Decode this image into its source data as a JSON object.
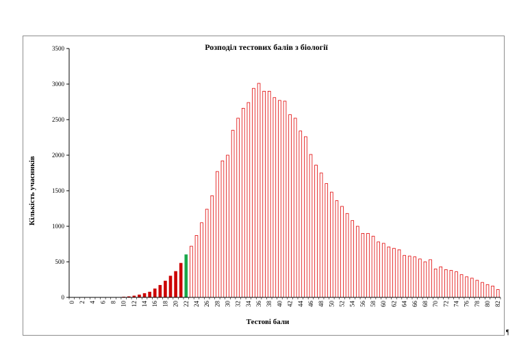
{
  "chart_data": {
    "type": "bar",
    "title": "Розподіл  тестових  балів  з біології",
    "xlabel": "Тестові бали",
    "ylabel": "Кількість учасників",
    "ylim": [
      0,
      3500
    ],
    "yticks": [
      0,
      500,
      1000,
      1500,
      2000,
      2500,
      3000,
      3500
    ],
    "xticks_shown": [
      "0",
      "2",
      "4",
      "6",
      "8",
      "10",
      "12",
      "14",
      "16",
      "18",
      "20",
      "22",
      "24",
      "26",
      "28",
      "30",
      "32",
      "34",
      "36",
      "38",
      "40",
      "42",
      "44",
      "46",
      "48",
      "50",
      "52",
      "54",
      "56",
      "58",
      "60",
      "62",
      "64",
      "66",
      "68",
      "70",
      "72",
      "74",
      "76",
      "78",
      "80",
      "82"
    ],
    "grid": false,
    "legend": "none",
    "bar_style": {
      "below_threshold": {
        "range": [
          0,
          21
        ],
        "fill": "#cc0000",
        "stroke": "#cc0000"
      },
      "threshold": {
        "score": 22,
        "fill": "#1aa84a",
        "stroke": "#1aa84a"
      },
      "above_threshold": {
        "range": [
          23,
          82
        ],
        "fill": "#ffffff",
        "stroke": "#e00000"
      }
    },
    "categories": [
      "0",
      "1",
      "2",
      "3",
      "4",
      "5",
      "6",
      "7",
      "8",
      "9",
      "10",
      "11",
      "12",
      "13",
      "14",
      "15",
      "16",
      "17",
      "18",
      "19",
      "20",
      "21",
      "22",
      "23",
      "24",
      "25",
      "26",
      "27",
      "28",
      "29",
      "30",
      "31",
      "32",
      "33",
      "34",
      "35",
      "36",
      "37",
      "38",
      "39",
      "40",
      "41",
      "42",
      "43",
      "44",
      "45",
      "46",
      "47",
      "48",
      "49",
      "50",
      "51",
      "52",
      "53",
      "54",
      "55",
      "56",
      "57",
      "58",
      "59",
      "60",
      "61",
      "62",
      "63",
      "64",
      "65",
      "66",
      "67",
      "68",
      "69",
      "70",
      "71",
      "72",
      "73",
      "74",
      "75",
      "76",
      "77",
      "78",
      "79",
      "80",
      "81",
      "82"
    ],
    "values": [
      0,
      0,
      0,
      0,
      0,
      0,
      0,
      0,
      0,
      0,
      5,
      10,
      20,
      35,
      55,
      75,
      120,
      170,
      230,
      300,
      365,
      480,
      600,
      720,
      870,
      1050,
      1240,
      1430,
      1770,
      1920,
      2000,
      2350,
      2520,
      2660,
      2740,
      2940,
      3010,
      2900,
      2900,
      2810,
      2770,
      2760,
      2570,
      2520,
      2340,
      2260,
      2010,
      1860,
      1750,
      1600,
      1480,
      1360,
      1280,
      1180,
      1080,
      1000,
      900,
      900,
      860,
      780,
      760,
      710,
      690,
      670,
      590,
      580,
      570,
      540,
      500,
      530,
      400,
      430,
      390,
      380,
      360,
      320,
      290,
      270,
      240,
      210,
      180,
      160,
      110
    ]
  }
}
